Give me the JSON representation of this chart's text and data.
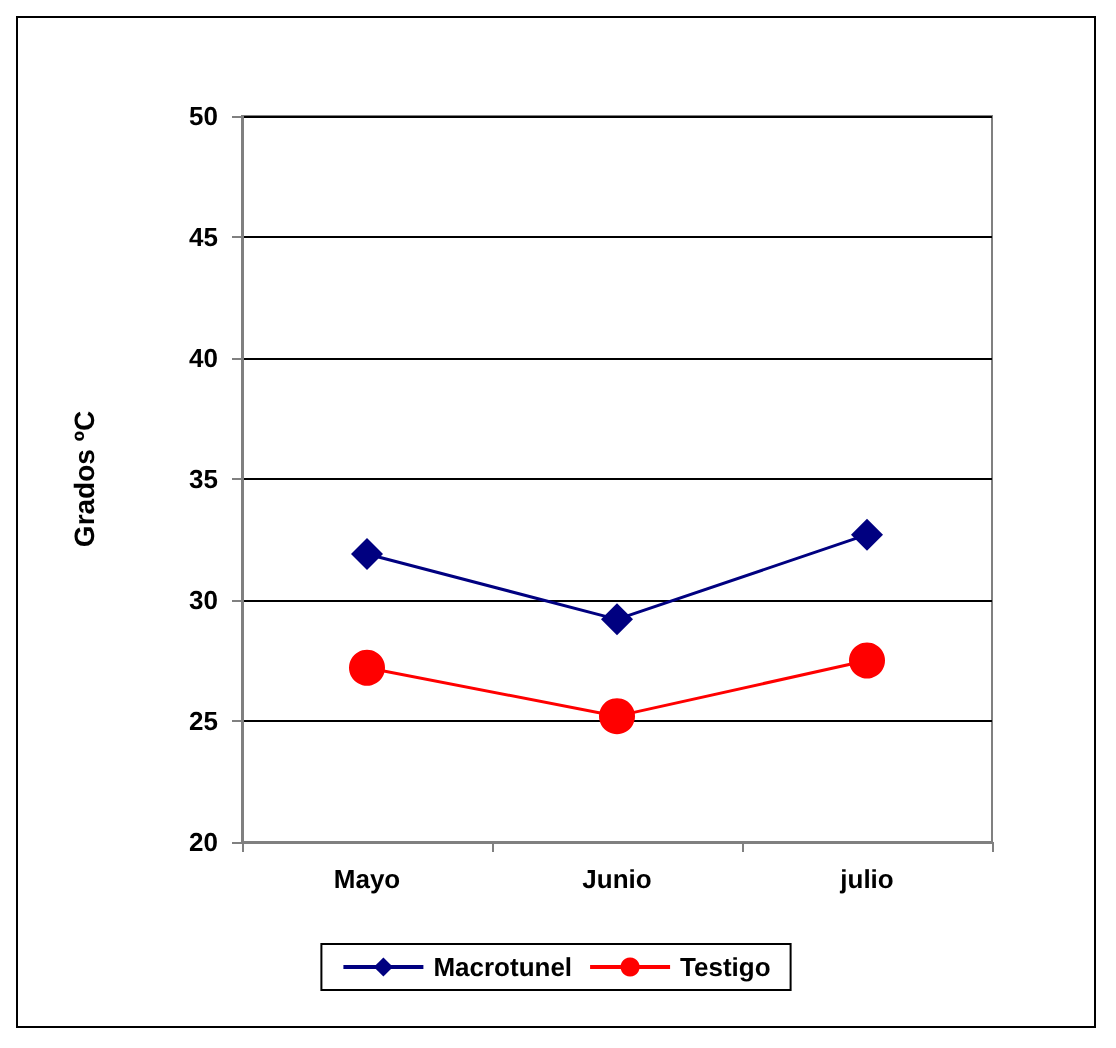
{
  "chart_data": {
    "type": "line",
    "ylabel": "Grados ºC",
    "categories": [
      "Mayo",
      "Junio",
      "julio"
    ],
    "series": [
      {
        "name": "Macrotunel",
        "color": "#000080",
        "marker": "diamond",
        "values": [
          31.9,
          29.2,
          32.7
        ]
      },
      {
        "name": "Testigo",
        "color": "#ff0000",
        "marker": "circle",
        "values": [
          27.2,
          25.2,
          27.5
        ]
      }
    ],
    "ylim": [
      20,
      50
    ],
    "yticks": [
      20,
      25,
      30,
      35,
      40,
      45,
      50
    ],
    "grid": "y",
    "legend": "bottom"
  }
}
